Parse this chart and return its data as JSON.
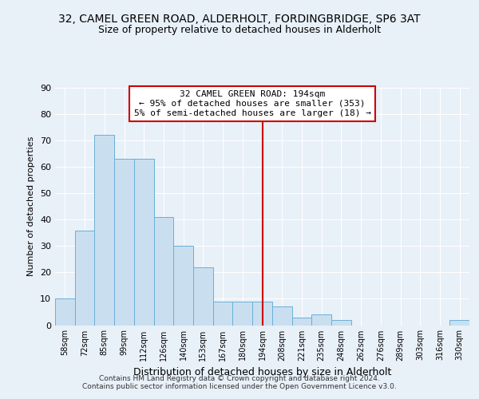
{
  "title": "32, CAMEL GREEN ROAD, ALDERHOLT, FORDINGBRIDGE, SP6 3AT",
  "subtitle": "Size of property relative to detached houses in Alderholt",
  "xlabel": "Distribution of detached houses by size in Alderholt",
  "ylabel": "Number of detached properties",
  "bar_labels": [
    "58sqm",
    "72sqm",
    "85sqm",
    "99sqm",
    "112sqm",
    "126sqm",
    "140sqm",
    "153sqm",
    "167sqm",
    "180sqm",
    "194sqm",
    "208sqm",
    "221sqm",
    "235sqm",
    "248sqm",
    "262sqm",
    "276sqm",
    "289sqm",
    "303sqm",
    "316sqm",
    "330sqm"
  ],
  "bar_values": [
    10,
    36,
    72,
    63,
    63,
    41,
    30,
    22,
    9,
    9,
    9,
    7,
    3,
    4,
    2,
    0,
    0,
    0,
    0,
    0,
    2
  ],
  "bar_color": "#c9dff0",
  "bar_edge_color": "#6aafd6",
  "vline_x": 10,
  "vline_color": "#cc0000",
  "annotation_title": "32 CAMEL GREEN ROAD: 194sqm",
  "annotation_line1": "← 95% of detached houses are smaller (353)",
  "annotation_line2": "5% of semi-detached houses are larger (18) →",
  "annotation_box_color": "#cc0000",
  "annotation_bg": "#ffffff",
  "ylim": [
    0,
    90
  ],
  "yticks": [
    0,
    10,
    20,
    30,
    40,
    50,
    60,
    70,
    80,
    90
  ],
  "footer1": "Contains HM Land Registry data © Crown copyright and database right 2024.",
  "footer2": "Contains public sector information licensed under the Open Government Licence v3.0.",
  "bg_color": "#e8f0f8",
  "plot_bg": "#e8f0f8"
}
